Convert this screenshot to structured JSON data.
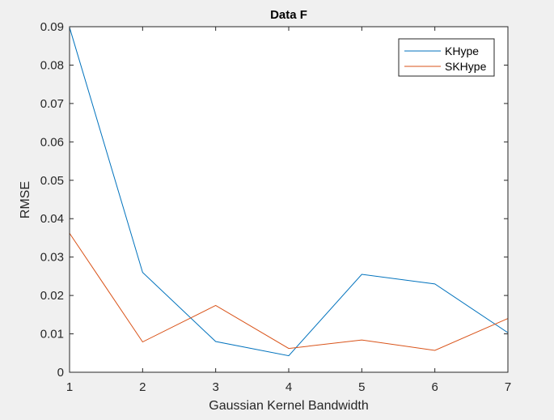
{
  "chart_data": {
    "type": "line",
    "title": "Data F",
    "xlabel": "Gaussian Kernel Bandwidth",
    "ylabel": "RMSE",
    "xlim": [
      1,
      7
    ],
    "ylim": [
      0,
      0.09
    ],
    "xticks": [
      "1",
      "2",
      "3",
      "4",
      "5",
      "6",
      "7"
    ],
    "yticks": [
      "0",
      "0.01",
      "0.02",
      "0.03",
      "0.04",
      "0.05",
      "0.06",
      "0.07",
      "0.08",
      "0.09"
    ],
    "x": [
      1,
      2,
      3,
      4,
      5,
      6,
      7
    ],
    "series": [
      {
        "name": "KHype",
        "color": "#0072BD",
        "values": [
          0.0898,
          0.026,
          0.008,
          0.0043,
          0.0255,
          0.023,
          0.0103
        ]
      },
      {
        "name": "SKHype",
        "color": "#D95319",
        "values": [
          0.0362,
          0.0079,
          0.0174,
          0.0062,
          0.0084,
          0.0057,
          0.014
        ]
      }
    ],
    "legend": "top-right",
    "grid": false
  }
}
